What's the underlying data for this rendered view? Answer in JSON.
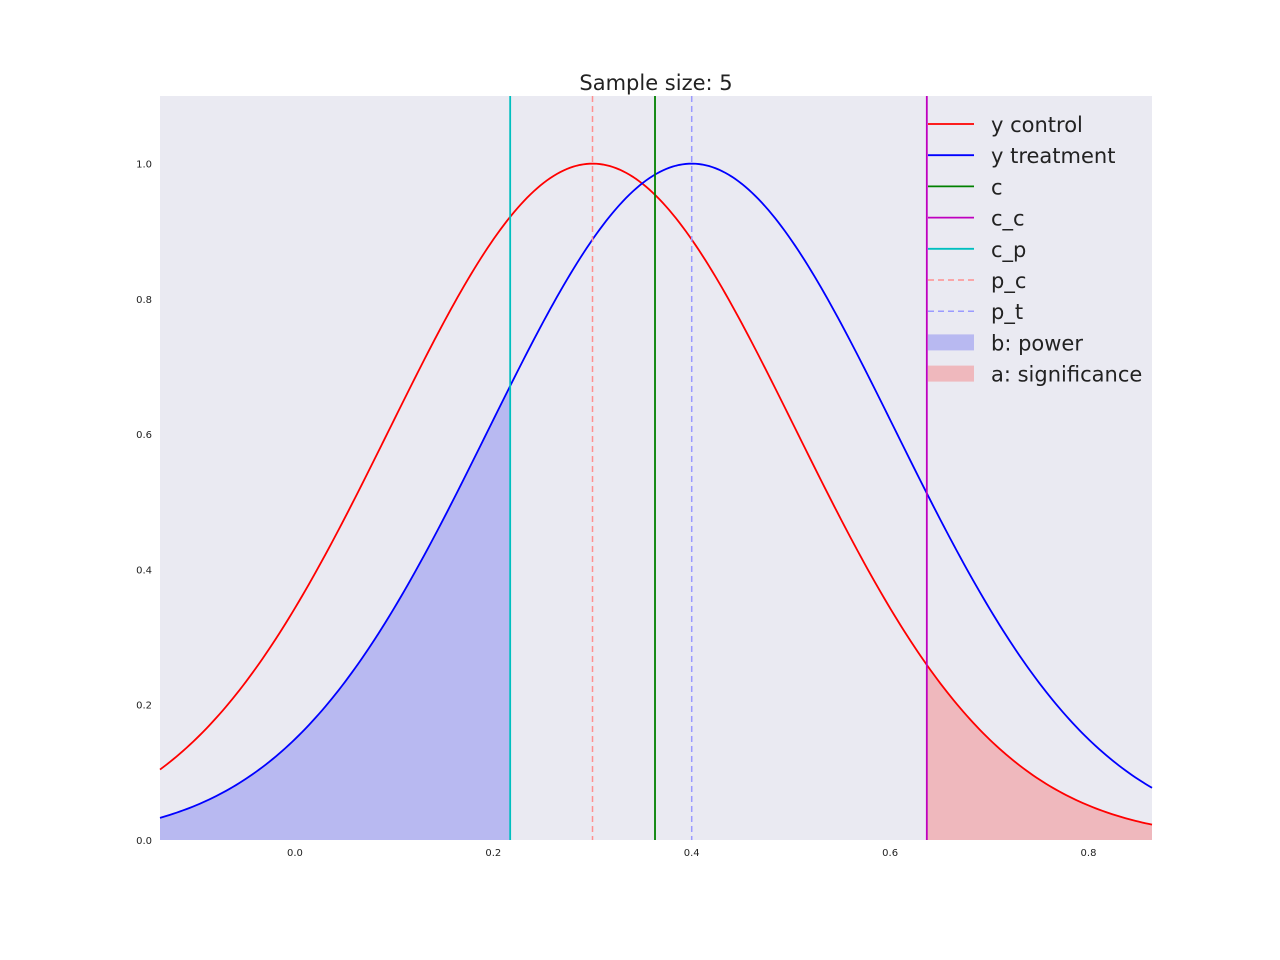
{
  "chart_data": {
    "type": "line",
    "title": "Sample size: 5",
    "xlabel": "",
    "ylabel": "",
    "xlim": [
      -0.136,
      0.864
    ],
    "ylim": [
      0,
      1.1
    ],
    "x_ticks": [
      "0.0",
      "0.2",
      "0.4",
      "0.6",
      "0.8"
    ],
    "y_ticks": [
      "0.0",
      "0.2",
      "0.4",
      "0.6",
      "0.8",
      "1.0"
    ],
    "grid": false,
    "background": "#eaeaf2",
    "legend_position": "top-right",
    "curves": [
      {
        "name": "y control",
        "color": "#ff0000",
        "peak_x": 0.3,
        "peak_y": 1.0,
        "sigma": 0.205
      },
      {
        "name": "y treatment",
        "color": "#0000ff",
        "peak_x": 0.4,
        "peak_y": 1.0,
        "sigma": 0.205
      }
    ],
    "vlines": [
      {
        "name": "c",
        "x": 0.363,
        "color": "#008000",
        "style": "solid"
      },
      {
        "name": "c_c",
        "x": 0.637,
        "color": "#bf00bf",
        "style": "solid"
      },
      {
        "name": "c_p",
        "x": 0.217,
        "color": "#00bfbf",
        "style": "solid"
      },
      {
        "name": "p_c",
        "x": 0.3,
        "color": "#ff9090",
        "style": "dashed"
      },
      {
        "name": "p_t",
        "x": 0.4,
        "color": "#9a9aff",
        "style": "dashed"
      }
    ],
    "fills": [
      {
        "name": "b: power",
        "curve": "y treatment",
        "from": -0.136,
        "to": 0.217,
        "color": "#b8b9f1"
      },
      {
        "name": "a: significance",
        "curve": "y control",
        "from": 0.637,
        "to": 0.864,
        "color": "#efb8bd"
      }
    ],
    "legend": [
      "y control",
      "y treatment",
      "c",
      "c_c",
      "c_p",
      "p_c",
      "p_t",
      "b: power",
      "a: significance"
    ]
  }
}
